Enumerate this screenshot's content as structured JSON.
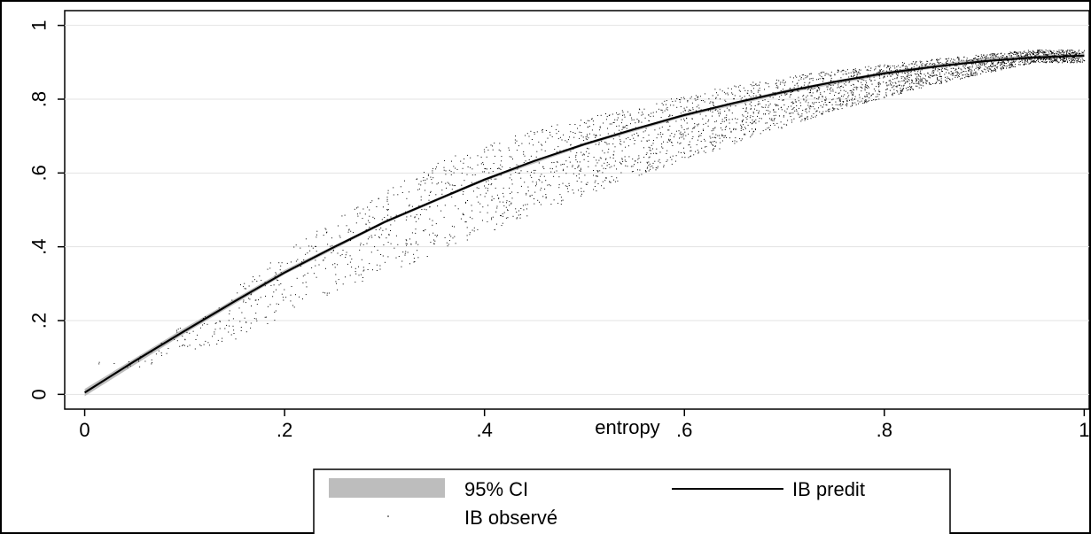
{
  "chart_data": {
    "type": "scatter",
    "title": "",
    "xlabel": "entropy",
    "ylabel": "",
    "xlim": [
      -0.02,
      1.005
    ],
    "ylim": [
      -0.04,
      1.04
    ],
    "x_ticks": [
      0,
      0.2,
      0.4,
      0.6,
      0.8,
      1
    ],
    "x_tick_labels": [
      "0",
      ".2",
      ".4",
      ".6",
      ".8",
      "1"
    ],
    "y_ticks": [
      0,
      0.2,
      0.4,
      0.6,
      0.8,
      1
    ],
    "y_tick_labels": [
      "0",
      ".2",
      ".4",
      ".6",
      ".8",
      "1"
    ],
    "grid": "horizontal",
    "legend_position": "bottom",
    "legend": [
      "95% CI",
      "IB predit",
      "IB observé"
    ],
    "series": [
      {
        "name": "95% CI",
        "kind": "band",
        "color": "#bdbdbd",
        "x": [
          0,
          0.1,
          0.2,
          0.3,
          0.4,
          0.5,
          0.6,
          0.7,
          0.8,
          0.9,
          1.0
        ],
        "lower": [
          -0.005,
          0.165,
          0.325,
          0.463,
          0.578,
          0.674,
          0.752,
          0.815,
          0.865,
          0.902,
          0.915
        ],
        "upper": [
          0.015,
          0.18,
          0.337,
          0.471,
          0.586,
          0.682,
          0.761,
          0.825,
          0.875,
          0.912,
          0.925
        ]
      },
      {
        "name": "IB predit",
        "kind": "line",
        "color": "#000000",
        "x": [
          0,
          0.05,
          0.1,
          0.15,
          0.2,
          0.25,
          0.3,
          0.35,
          0.4,
          0.45,
          0.5,
          0.55,
          0.6,
          0.65,
          0.7,
          0.75,
          0.8,
          0.85,
          0.9,
          0.95,
          1.0
        ],
        "y": [
          0.005,
          0.09,
          0.172,
          0.252,
          0.33,
          0.4,
          0.467,
          0.525,
          0.582,
          0.633,
          0.678,
          0.719,
          0.757,
          0.79,
          0.82,
          0.847,
          0.87,
          0.888,
          0.903,
          0.913,
          0.918
        ]
      },
      {
        "name": "IB observé",
        "kind": "points",
        "color": "#000000",
        "point_count": 3600,
        "x_range": [
          0,
          1.0
        ],
        "spread": [
          {
            "x": 0.05,
            "low": 0.07,
            "high": 0.1
          },
          {
            "x": 0.15,
            "low": 0.15,
            "high": 0.29
          },
          {
            "x": 0.25,
            "low": 0.28,
            "high": 0.48
          },
          {
            "x": 0.35,
            "low": 0.38,
            "high": 0.63
          },
          {
            "x": 0.45,
            "low": 0.49,
            "high": 0.72
          },
          {
            "x": 0.55,
            "low": 0.59,
            "high": 0.78
          },
          {
            "x": 0.65,
            "low": 0.68,
            "high": 0.84
          },
          {
            "x": 0.75,
            "low": 0.77,
            "high": 0.88
          },
          {
            "x": 0.85,
            "low": 0.84,
            "high": 0.91
          },
          {
            "x": 0.95,
            "low": 0.9,
            "high": 0.935
          }
        ]
      }
    ]
  }
}
